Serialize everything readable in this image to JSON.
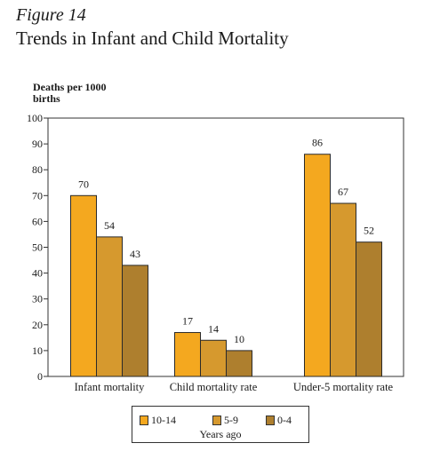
{
  "figure": {
    "label": "Figure 14",
    "title": "Trends in Infant and Child Mortality"
  },
  "chart_data": {
    "type": "bar",
    "title": "Trends in Infant and Child Mortality",
    "ylabel": "Deaths per 1000\nbirths",
    "xlabel": "",
    "ylim": [
      0,
      100
    ],
    "yticks": [
      0,
      10,
      20,
      30,
      40,
      50,
      60,
      70,
      80,
      90,
      100
    ],
    "categories": [
      "Infant mortality",
      "Child mortality rate",
      "Under-5 mortality rate"
    ],
    "series": [
      {
        "name": "10-14",
        "color": "#f4a81f",
        "values": [
          70,
          17,
          86
        ]
      },
      {
        "name": "5-9",
        "color": "#d6992e",
        "values": [
          54,
          14,
          67
        ]
      },
      {
        "name": "0-4",
        "color": "#ae7f2e",
        "values": [
          43,
          10,
          52
        ]
      }
    ],
    "legend": {
      "title": "Years ago",
      "placement": "bottom-center"
    },
    "grid": false
  }
}
